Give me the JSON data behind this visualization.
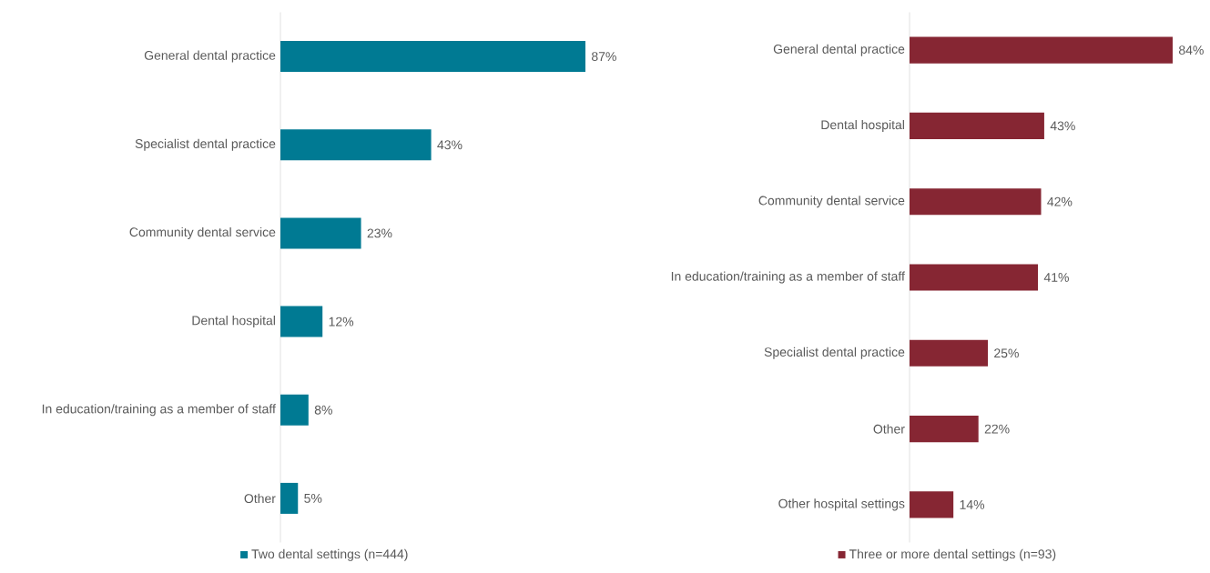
{
  "chart_data": [
    {
      "type": "bar",
      "orientation": "horizontal",
      "categories": [
        "General dental practice",
        "Specialist dental practice",
        "Community dental service",
        "Dental hospital",
        "In education/training as a member of staff",
        "Other"
      ],
      "series": [
        {
          "name": "Two dental settings (n=444)",
          "color": "#007a93",
          "values": [
            87,
            43,
            23,
            12,
            8,
            5
          ],
          "value_labels": [
            "87%",
            "43%",
            "23%",
            "12%",
            "8%",
            "5%"
          ]
        }
      ],
      "legend": "bottom"
    },
    {
      "type": "bar",
      "orientation": "horizontal",
      "categories": [
        "General dental practice",
        "Dental hospital",
        "Community dental service",
        "In education/training as a member of staff",
        "Specialist dental practice",
        "Other",
        "Other hospital settings"
      ],
      "series": [
        {
          "name": "Three or more dental settings (n=93)",
          "color": "#862633",
          "values": [
            84,
            43,
            42,
            41,
            25,
            22,
            14
          ],
          "value_labels": [
            "84%",
            "43%",
            "42%",
            "41%",
            "25%",
            "22%",
            "14%"
          ]
        }
      ],
      "legend": "bottom"
    }
  ]
}
